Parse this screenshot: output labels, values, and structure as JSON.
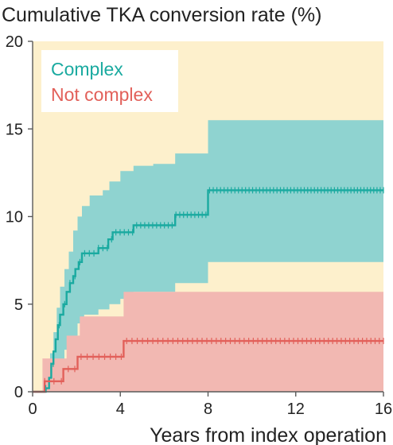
{
  "chart_data": {
    "type": "line",
    "title": "Cumulative TKA conversion rate (%)",
    "xlabel": "Years from index operation",
    "ylabel": "",
    "xlim": [
      0,
      16
    ],
    "ylim": [
      0,
      20
    ],
    "x_ticks": [
      0,
      4,
      8,
      12,
      16
    ],
    "y_ticks": [
      0,
      5,
      10,
      15,
      20
    ],
    "legend_position": "top-left",
    "grid": false,
    "colors": {
      "background": "#fdf0cc",
      "legend_box": "#ffffff",
      "axis": "#5a5a5a"
    },
    "series": [
      {
        "name": "Complex",
        "color": "#1aaaa0",
        "band_color": "#8fd3d0",
        "steps": [
          [
            0,
            0
          ],
          [
            0.6,
            0.2
          ],
          [
            0.75,
            0.8
          ],
          [
            0.85,
            1.6
          ],
          [
            0.95,
            2.3
          ],
          [
            1.05,
            3.0
          ],
          [
            1.15,
            3.8
          ],
          [
            1.25,
            4.4
          ],
          [
            1.4,
            5.0
          ],
          [
            1.55,
            5.7
          ],
          [
            1.7,
            6.2
          ],
          [
            1.85,
            6.6
          ],
          [
            1.95,
            7.0
          ],
          [
            2.1,
            7.4
          ],
          [
            2.25,
            7.9
          ],
          [
            3.0,
            8.2
          ],
          [
            3.45,
            8.7
          ],
          [
            3.65,
            9.1
          ],
          [
            4.6,
            9.5
          ],
          [
            6.5,
            10.1
          ],
          [
            8.0,
            11.5
          ],
          [
            16,
            11.5
          ]
        ],
        "ci_upper": [
          [
            0,
            0
          ],
          [
            0.6,
            0.9
          ],
          [
            0.8,
            2.2
          ],
          [
            0.95,
            3.4
          ],
          [
            1.1,
            4.8
          ],
          [
            1.25,
            6.0
          ],
          [
            1.45,
            7.0
          ],
          [
            1.65,
            8.0
          ],
          [
            1.85,
            9.2
          ],
          [
            2.05,
            10.0
          ],
          [
            2.25,
            10.6
          ],
          [
            2.6,
            11.2
          ],
          [
            3.2,
            11.5
          ],
          [
            3.5,
            12.0
          ],
          [
            4.0,
            12.6
          ],
          [
            4.6,
            12.9
          ],
          [
            5.5,
            13.0
          ],
          [
            6.5,
            13.6
          ],
          [
            8.0,
            15.5
          ],
          [
            16,
            15.5
          ]
        ],
        "ci_lower": [
          [
            0,
            0
          ],
          [
            0.75,
            0.2
          ],
          [
            1.0,
            0.8
          ],
          [
            1.2,
            1.4
          ],
          [
            1.45,
            2.4
          ],
          [
            1.75,
            3.0
          ],
          [
            2.05,
            3.9
          ],
          [
            2.35,
            4.4
          ],
          [
            3.0,
            4.7
          ],
          [
            3.5,
            5.0
          ],
          [
            4.0,
            5.3
          ],
          [
            4.6,
            5.7
          ],
          [
            6.5,
            6.2
          ],
          [
            8.0,
            7.4
          ],
          [
            16,
            7.4
          ]
        ]
      },
      {
        "name": "Not complex",
        "color": "#e2605a",
        "band_color": "#f2b8b2",
        "steps": [
          [
            0,
            0
          ],
          [
            0.55,
            0.6
          ],
          [
            1.3,
            0.6
          ],
          [
            1.4,
            1.3
          ],
          [
            1.95,
            1.3
          ],
          [
            2.05,
            2.0
          ],
          [
            4.15,
            2.9
          ],
          [
            16,
            2.9
          ]
        ],
        "ci_upper": [
          [
            0,
            0
          ],
          [
            0.45,
            1.9
          ],
          [
            1.55,
            3.2
          ],
          [
            2.15,
            4.3
          ],
          [
            4.15,
            5.7
          ],
          [
            16,
            5.7
          ]
        ],
        "ci_lower": [
          [
            0,
            0
          ],
          [
            16,
            0
          ]
        ]
      }
    ]
  }
}
